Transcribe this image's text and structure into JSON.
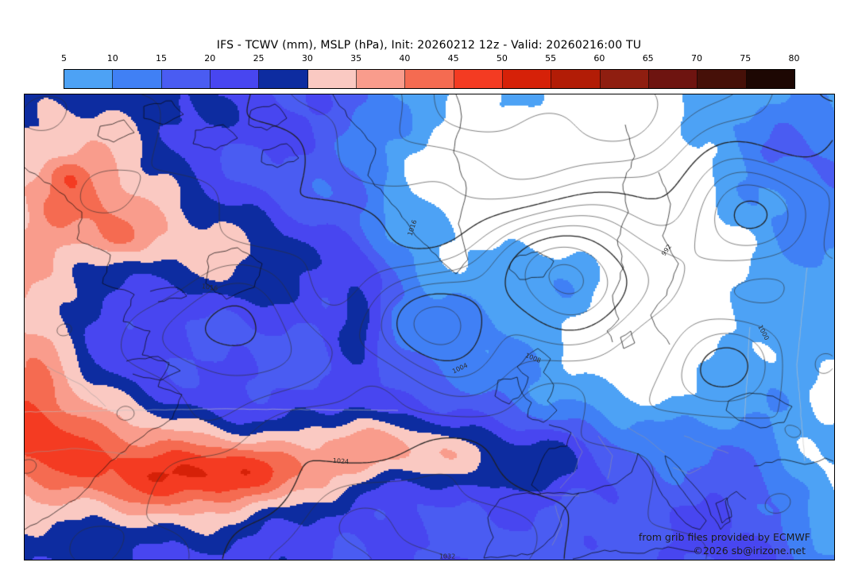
{
  "title": "IFS - TCWV (mm), MSLP (hPa), Init: 20260212 12z - Valid: 20260216:00 TU",
  "colorbar": {
    "tick_labels": [
      "5",
      "10",
      "15",
      "20",
      "25",
      "30",
      "35",
      "40",
      "45",
      "50",
      "55",
      "60",
      "65",
      "70",
      "75",
      "80"
    ],
    "segment_colors": [
      "#4da2f5",
      "#4080f5",
      "#4a5cf2",
      "#4846f0",
      "#0d2ca0",
      "#fac9c2",
      "#f99c8c",
      "#f56b51",
      "#f43b22",
      "#d62108",
      "#b21c06",
      "#8f1e10",
      "#6e1410",
      "#461008",
      "#1d0703"
    ]
  },
  "map": {
    "attribution_line1": "from grib files provided by ECMWF",
    "attribution_line2": "©2026 sb@irizone.net",
    "contour_labels": [
      "1016",
      "1016",
      "1008",
      "992",
      "1000",
      "1024",
      "1032",
      "1004"
    ]
  },
  "chart_data": {
    "type": "contour_map",
    "fill_variable": "TCWV (mm)",
    "line_variable": "MSLP (hPa)",
    "fill_levels": [
      5,
      10,
      15,
      20,
      25,
      30,
      35,
      40,
      45,
      50,
      55,
      60,
      65,
      70,
      75,
      80
    ],
    "fill_palette": [
      "#4da2f5",
      "#4080f5",
      "#4a5cf2",
      "#4846f0",
      "#0d2ca0",
      "#fac9c2",
      "#f99c8c",
      "#f56b51",
      "#f43b22",
      "#d62108",
      "#b21c06",
      "#8f1e10",
      "#6e1410",
      "#461008",
      "#1d0703"
    ],
    "below_scale_color": "#ffffff",
    "isobar_labels_visible": [
      "1016",
      "1016",
      "1008",
      "992",
      "1000",
      "1024",
      "1032",
      "1004"
    ]
  }
}
